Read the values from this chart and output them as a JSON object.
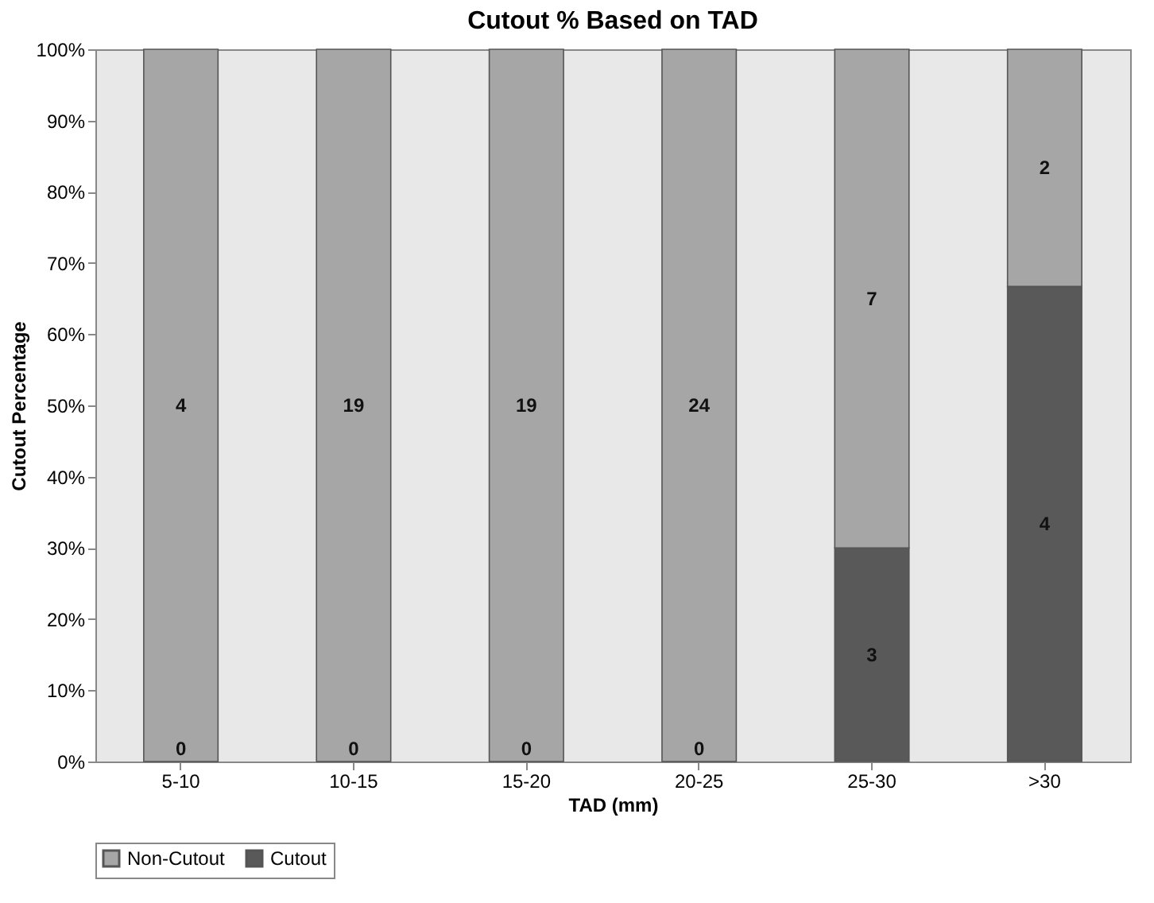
{
  "chart_data": {
    "type": "bar",
    "stacked": true,
    "title": "Cutout % Based on TAD",
    "xlabel": "TAD (mm)",
    "ylabel": "Cutout Percentage",
    "categories": [
      "5-10",
      "10-15",
      "15-20",
      "20-25",
      "25-30",
      ">30"
    ],
    "series": [
      {
        "name": "Cutout",
        "color": "#595959",
        "values": [
          0,
          0,
          0,
          0,
          30,
          66.7
        ]
      },
      {
        "name": "Non-Cutout",
        "color": "#a6a6a6",
        "values": [
          100,
          100,
          100,
          100,
          70,
          33.3
        ]
      }
    ],
    "annotations": [
      "0",
      "0",
      "0",
      "0",
      "3",
      "4",
      "4",
      "19",
      "19",
      "24",
      "7",
      "2"
    ],
    "ylim": [
      0,
      100
    ],
    "yticks": [
      {
        "value": 0,
        "label": "0%"
      },
      {
        "value": 10,
        "label": "10%"
      },
      {
        "value": 20,
        "label": "20%"
      },
      {
        "value": 30,
        "label": "30%"
      },
      {
        "value": 40,
        "label": "40%"
      },
      {
        "value": 50,
        "label": "50%"
      },
      {
        "value": 60,
        "label": "60%"
      },
      {
        "value": 70,
        "label": "70%"
      },
      {
        "value": 80,
        "label": "80%"
      },
      {
        "value": 90,
        "label": "90%"
      },
      {
        "value": 100,
        "label": "100%"
      }
    ],
    "legend": "bottom",
    "grid": false
  }
}
